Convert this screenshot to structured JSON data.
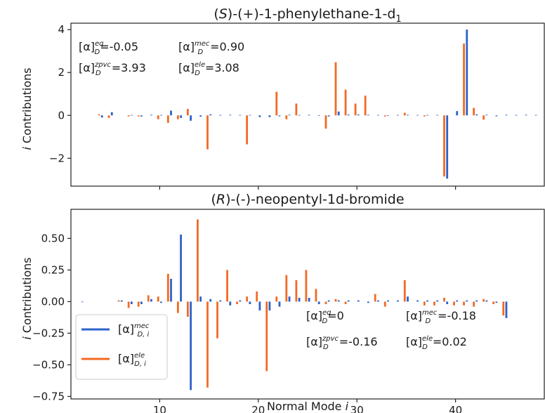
{
  "chart_data": [
    {
      "type": "bar",
      "title": "(S)-(+)-1-phenylethane-1-d1",
      "title_parts": {
        "open": "(",
        "s": "S",
        "rest": ")-(+)-1-phenylethane-1-d",
        "sub": "1"
      },
      "xlabel": "",
      "ylabel": "i Contributions",
      "ylabel_parts": {
        "i": "i",
        "rest": " Contributions"
      },
      "xlim": [
        1,
        49
      ],
      "ylim": [
        -3.3,
        4.3
      ],
      "yticks": [
        -2,
        0,
        2,
        4
      ],
      "ytick_labels": [
        "−2",
        "0",
        "2",
        "4"
      ],
      "xticks": [
        10,
        20,
        30,
        40
      ],
      "annotations": [
        {
          "sup": "eq",
          "value": "=-0.05"
        },
        {
          "sup": "mec",
          "value": "=0.90"
        },
        {
          "sup": "zpvc",
          "value": "=3.93"
        },
        {
          "sup": "ele",
          "value": "=3.08"
        }
      ],
      "series": [
        {
          "name": "mec",
          "color": "#2d62c8",
          "offset": 0.15,
          "x": [
            4,
            5,
            7,
            8,
            9,
            10,
            11,
            12,
            13,
            14,
            15,
            16,
            17,
            18,
            19,
            20,
            21,
            22,
            23,
            24,
            25,
            26,
            27,
            28,
            29,
            30,
            31,
            32,
            33,
            34,
            35,
            36,
            37,
            38,
            39,
            40,
            41,
            42,
            43,
            44,
            45,
            46,
            47,
            48
          ],
          "values": [
            -0.1,
            0.15,
            0.02,
            -0.05,
            0.03,
            0.02,
            0.22,
            -0.12,
            -0.25,
            -0.06,
            0.05,
            0.02,
            0.03,
            0.02,
            0.02,
            -0.08,
            -0.08,
            -0.04,
            0.03,
            0.02,
            0.03,
            -0.02,
            -0.05,
            0.18,
            0.04,
            0.04,
            0.03,
            0.02,
            -0.02,
            0.02,
            0.03,
            0.02,
            0.02,
            0.02,
            -2.95,
            0.2,
            4.0,
            0.05,
            0.03,
            -0.04,
            0.03,
            0.02,
            0.03,
            0.02
          ]
        },
        {
          "name": "ele",
          "color": "#f26a24",
          "offset": -0.15,
          "x": [
            4,
            5,
            7,
            8,
            10,
            11,
            12,
            13,
            15,
            19,
            22,
            23,
            24,
            27,
            28,
            29,
            30,
            31,
            33,
            35,
            37,
            39,
            41,
            42,
            43
          ],
          "values": [
            0.05,
            -0.12,
            -0.05,
            -0.05,
            -0.18,
            -0.35,
            -0.18,
            0.3,
            -1.58,
            -1.35,
            1.1,
            -0.18,
            0.55,
            -0.62,
            2.48,
            1.2,
            0.55,
            0.92,
            -0.05,
            0.12,
            -0.05,
            -2.85,
            3.35,
            0.35,
            -0.2
          ]
        }
      ]
    },
    {
      "type": "bar",
      "title": "(R)-(-)-neopentyl-1d-bromide",
      "title_parts": {
        "open": "(",
        "r": "R",
        "rest": ")-(-)-neopentyl-1d-bromide"
      },
      "xlabel": "Normal Mode i",
      "xlabel_parts": {
        "text": "Normal Mode ",
        "i": "i"
      },
      "ylabel": "i Contributions",
      "ylabel_parts": {
        "i": "i",
        "rest": " Contributions"
      },
      "xlim": [
        1,
        49
      ],
      "ylim": [
        -0.77,
        0.73
      ],
      "yticks": [
        -0.75,
        -0.5,
        -0.25,
        0.0,
        0.25,
        0.5
      ],
      "ytick_labels": [
        "−0.75",
        "−0.50",
        "−0.25",
        "0.00",
        "0.25",
        "0.50"
      ],
      "xticks": [
        10,
        20,
        30,
        40
      ],
      "annotations": [
        {
          "sup": "eq",
          "value": "=0"
        },
        {
          "sup": "mec",
          "value": "=-0.18"
        },
        {
          "sup": "zpvc",
          "value": "=-0.16"
        },
        {
          "sup": "ele",
          "value": "=0.02"
        }
      ],
      "legend": {
        "location": "lower-left",
        "entries": [
          {
            "sup": "mec",
            "sub": "D, i",
            "color": "#2d62c8"
          },
          {
            "sup": "ele",
            "sub": "D, i",
            "color": "#f26a24"
          }
        ]
      },
      "series": [
        {
          "name": "mec",
          "color": "#2d62c8",
          "offset": 0.15,
          "x": [
            2,
            6,
            7,
            8,
            9,
            10,
            11,
            12,
            13,
            14,
            15,
            16,
            17,
            18,
            19,
            20,
            21,
            22,
            23,
            24,
            25,
            26,
            27,
            28,
            29,
            30,
            31,
            32,
            33,
            34,
            35,
            36,
            37,
            38,
            39,
            40,
            41,
            42,
            43,
            44,
            45
          ],
          "values": [
            0.0,
            0.01,
            -0.02,
            -0.02,
            0.02,
            -0.01,
            0.18,
            0.53,
            -0.7,
            0.04,
            0.02,
            0.01,
            -0.03,
            0.01,
            -0.02,
            -0.07,
            -0.07,
            -0.04,
            0.04,
            0.03,
            0.03,
            -0.02,
            0.01,
            0.01,
            0.01,
            0.01,
            -0.01,
            0.01,
            0.01,
            0.01,
            0.04,
            0.01,
            0.01,
            0.01,
            -0.02,
            0.01,
            0.01,
            0.01,
            0.01,
            -0.01,
            -0.13
          ]
        },
        {
          "name": "ele",
          "color": "#f26a24",
          "offset": -0.15,
          "x": [
            6,
            7,
            8,
            9,
            10,
            11,
            12,
            13,
            14,
            15,
            16,
            17,
            18,
            19,
            20,
            21,
            22,
            23,
            24,
            25,
            26,
            27,
            28,
            29,
            32,
            33,
            35,
            37,
            38,
            39,
            40,
            41,
            42,
            43,
            44,
            45
          ],
          "values": [
            0.01,
            -0.05,
            -0.04,
            0.05,
            0.04,
            0.22,
            -0.09,
            -0.12,
            0.65,
            -0.68,
            -0.29,
            0.25,
            -0.02,
            0.04,
            0.08,
            -0.55,
            0.04,
            0.21,
            0.17,
            0.25,
            0.1,
            -0.02,
            0.02,
            -0.02,
            0.06,
            -0.04,
            0.17,
            -0.03,
            -0.03,
            0.03,
            -0.03,
            -0.03,
            -0.04,
            0.02,
            -0.02,
            -0.11
          ]
        }
      ]
    }
  ]
}
